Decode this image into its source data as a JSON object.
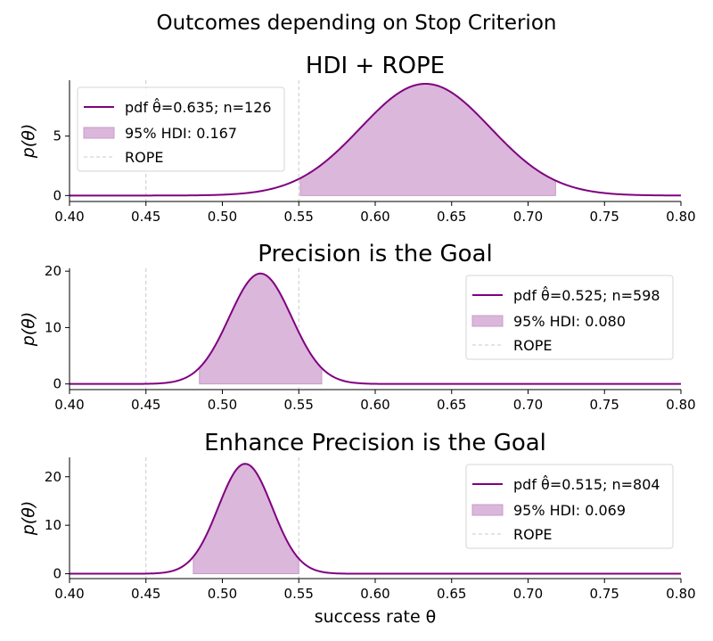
{
  "suptitle": "Outcomes depending on Stop Criterion",
  "colors": {
    "curve": "#800080",
    "fill": "#dbb7db",
    "fill_edge": "#c89bc8",
    "rope": "#c8c8c8",
    "axis": "#000000"
  },
  "chart_data": [
    {
      "type": "area",
      "title": "HDI + ROPE",
      "xlabel": "",
      "ylabel": "p(θ)",
      "xlim": [
        0.4,
        0.8
      ],
      "ylim": [
        -0.5,
        9.7
      ],
      "xticks": [
        "0.40",
        "0.45",
        "0.50",
        "0.55",
        "0.60",
        "0.65",
        "0.70",
        "0.75",
        "0.80"
      ],
      "yticks": [
        0,
        5
      ],
      "legend_position": "upper-left",
      "legend": [
        "pdf θ̂=0.635; n=126",
        "95% HDI: 0.167",
        "ROPE"
      ],
      "pdf": {
        "name": "pdf θ̂=0.635; n=126",
        "theta_hat": 0.635,
        "n": 126
      },
      "hdi": {
        "name": "95% HDI: 0.167",
        "low": 0.551,
        "high": 0.718
      },
      "rope": {
        "name": "ROPE",
        "low": 0.45,
        "high": 0.55
      }
    },
    {
      "type": "area",
      "title": "Precision is the Goal",
      "xlabel": "",
      "ylabel": "p(θ)",
      "xlim": [
        0.4,
        0.8
      ],
      "ylim": [
        -1.0,
        20.5
      ],
      "xticks": [
        "0.40",
        "0.45",
        "0.50",
        "0.55",
        "0.60",
        "0.65",
        "0.70",
        "0.75",
        "0.80"
      ],
      "yticks": [
        0,
        10,
        20
      ],
      "legend_position": "upper-right",
      "legend": [
        "pdf θ̂=0.525; n=598",
        "95% HDI: 0.080",
        "ROPE"
      ],
      "pdf": {
        "name": "pdf θ̂=0.525; n=598",
        "theta_hat": 0.525,
        "n": 598
      },
      "hdi": {
        "name": "95% HDI: 0.080",
        "low": 0.485,
        "high": 0.565
      },
      "rope": {
        "name": "ROPE",
        "low": 0.45,
        "high": 0.55
      }
    },
    {
      "type": "area",
      "title": "Enhance Precision is the Goal",
      "xlabel": "success rate θ",
      "ylabel": "p(θ)",
      "xlim": [
        0.4,
        0.8
      ],
      "ylim": [
        -1.0,
        24.0
      ],
      "xticks": [
        "0.40",
        "0.45",
        "0.50",
        "0.55",
        "0.60",
        "0.65",
        "0.70",
        "0.75",
        "0.80"
      ],
      "yticks": [
        0,
        10,
        20
      ],
      "legend_position": "upper-right",
      "legend": [
        "pdf θ̂=0.515; n=804",
        "95% HDI: 0.069",
        "ROPE"
      ],
      "pdf": {
        "name": "pdf θ̂=0.515; n=804",
        "theta_hat": 0.515,
        "n": 804
      },
      "hdi": {
        "name": "95% HDI: 0.069",
        "low": 0.481,
        "high": 0.55
      },
      "rope": {
        "name": "ROPE",
        "low": 0.45,
        "high": 0.55
      }
    }
  ]
}
